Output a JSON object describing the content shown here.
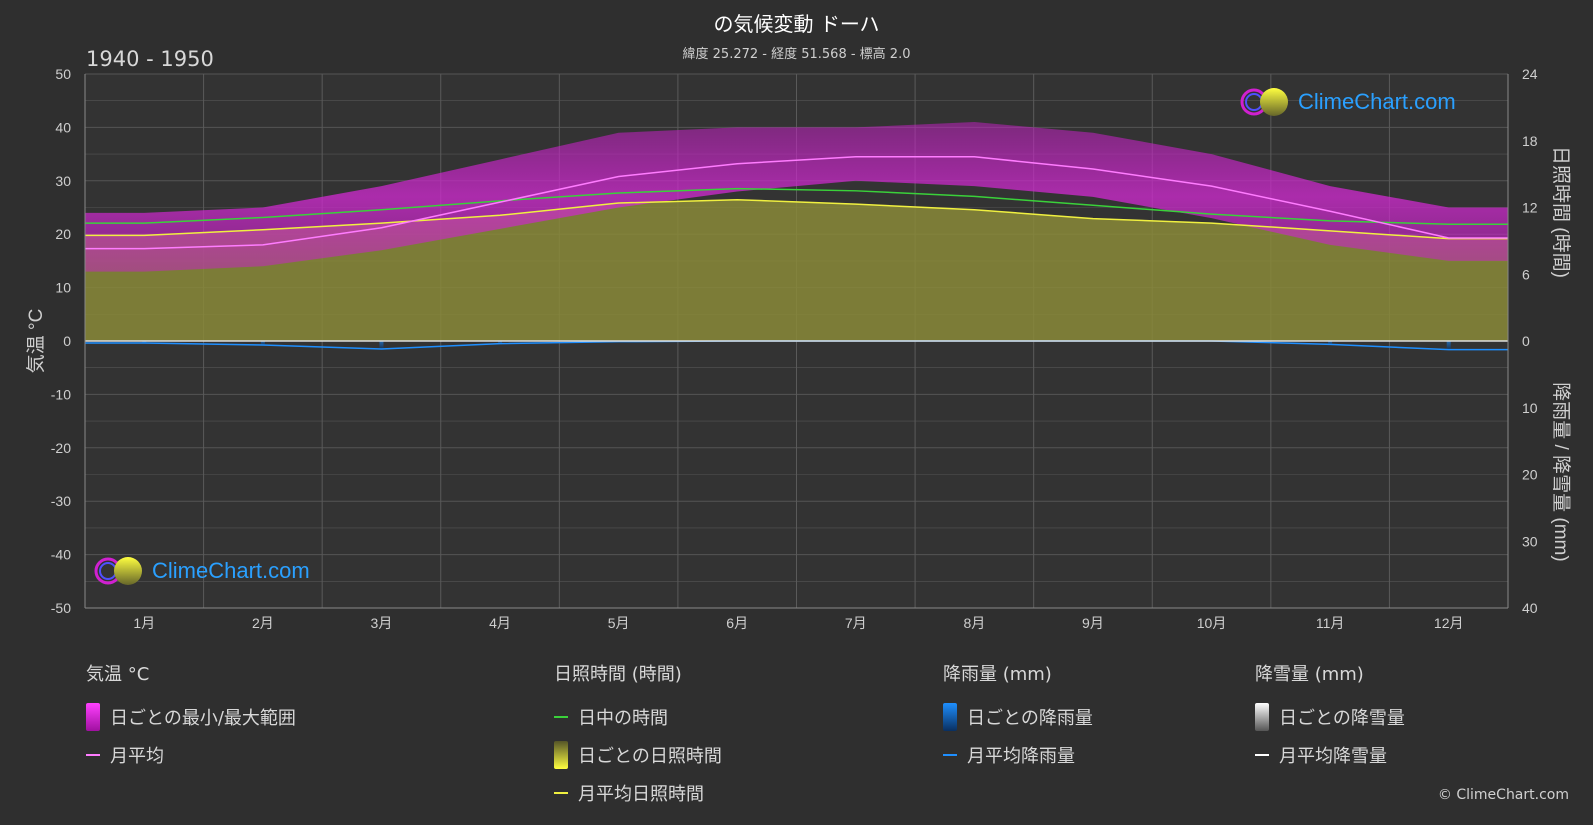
{
  "header": {
    "title": "の気候変動 ドーハ",
    "subtitle": "緯度 25.272 - 経度 51.568 - 標高 2.0",
    "period": "1940 - 1950"
  },
  "logo": {
    "text": "ClimeChart.com"
  },
  "copyright": "© ClimeChart.com",
  "colors": {
    "background": "#2f2f2f",
    "temp_range": "#c81fc8",
    "temp_avg": "#ff7cff",
    "daylight": "#3ad13a",
    "sunshine_fill": "#8a8a38",
    "sunshine_avg": "#f0f040",
    "rain": "#1e6fd0",
    "snow": "#ffffff"
  },
  "chart_data": {
    "type": "area",
    "months": [
      "1月",
      "2月",
      "3月",
      "4月",
      "5月",
      "6月",
      "7月",
      "8月",
      "9月",
      "10月",
      "11月",
      "12月"
    ],
    "left_axis": {
      "label": "気温 °C",
      "ticks": [
        50,
        40,
        30,
        20,
        10,
        0,
        -10,
        -20,
        -30,
        -40,
        -50
      ],
      "range": [
        -50,
        50
      ]
    },
    "right_axis_top": {
      "label": "日照時間 (時間)",
      "ticks": [
        24,
        18,
        12,
        6,
        0
      ],
      "range": [
        0,
        24
      ]
    },
    "right_axis_bottom": {
      "label": "降雨量 / 降雪量 (mm)",
      "ticks": [
        0,
        10,
        20,
        30,
        40
      ],
      "range": [
        0,
        40
      ]
    },
    "series": [
      {
        "name": "月平均",
        "unit": "°C",
        "values": [
          17.3,
          18.0,
          21.2,
          26.0,
          30.8,
          33.2,
          34.5,
          34.5,
          32.2,
          29.0,
          24.3,
          19.3
        ]
      },
      {
        "name": "日中の時間",
        "unit": "h",
        "values": [
          10.6,
          11.1,
          11.8,
          12.6,
          13.3,
          13.7,
          13.5,
          13.0,
          12.2,
          11.4,
          10.8,
          10.5
        ]
      },
      {
        "name": "月平均日照時間",
        "unit": "h",
        "values": [
          9.5,
          10.0,
          10.6,
          11.3,
          12.4,
          12.7,
          12.3,
          11.8,
          11.0,
          10.6,
          9.9,
          9.2
        ]
      },
      {
        "name": "月平均降雨量",
        "unit": "mm",
        "values": [
          0.3,
          0.6,
          1.2,
          0.4,
          0.1,
          0.0,
          0.0,
          0.0,
          0.0,
          0.0,
          0.5,
          1.3
        ]
      }
    ],
    "temp_range": {
      "min": [
        13,
        14,
        17,
        21,
        25,
        28,
        30,
        29,
        27,
        23,
        18,
        15
      ],
      "max": [
        24,
        25,
        29,
        34,
        39,
        40,
        40,
        41,
        39,
        35,
        29,
        25
      ]
    }
  },
  "legend": {
    "temperature": {
      "heading": "気温 °C",
      "items": [
        "日ごとの最小/最大範囲",
        "月平均"
      ]
    },
    "sunshine": {
      "heading": "日照時間 (時間)",
      "items": [
        "日中の時間",
        "日ごとの日照時間",
        "月平均日照時間"
      ]
    },
    "rain": {
      "heading": "降雨量 (mm)",
      "items": [
        "日ごとの降雨量",
        "月平均降雨量"
      ]
    },
    "snow": {
      "heading": "降雪量 (mm)",
      "items": [
        "日ごとの降雪量",
        "月平均降雪量"
      ]
    }
  }
}
